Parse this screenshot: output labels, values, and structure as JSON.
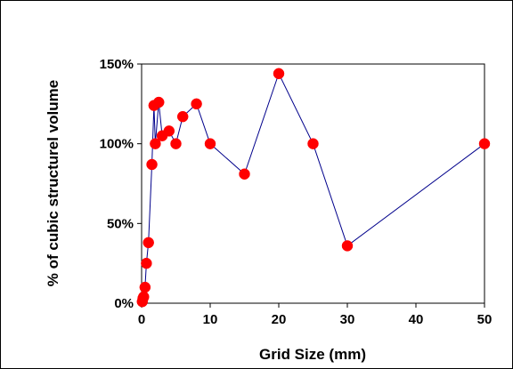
{
  "chart_data": {
    "type": "scatter",
    "title": "",
    "xlabel": "Grid Size (mm)",
    "ylabel": "% of cubic structurel volume",
    "xlim": [
      0,
      50
    ],
    "ylim": [
      0,
      150
    ],
    "x_ticks": [
      0,
      10,
      20,
      30,
      40,
      50
    ],
    "x_tick_labels": [
      "0",
      "10",
      "20",
      "30",
      "40",
      "50"
    ],
    "y_ticks": [
      0,
      50,
      100,
      150
    ],
    "y_tick_labels": [
      "0%",
      "50%",
      "100%",
      "150%"
    ],
    "grid": false,
    "legend": "none",
    "line_color": "#00008B",
    "marker_color": "#FF0000",
    "series": [
      {
        "points": [
          [
            0.1,
            1
          ],
          [
            0.2,
            3
          ],
          [
            0.3,
            4
          ],
          [
            0.5,
            10
          ],
          [
            0.7,
            25
          ],
          [
            1.0,
            38
          ],
          [
            1.5,
            87
          ],
          [
            1.8,
            124
          ],
          [
            2.0,
            100
          ],
          [
            2.5,
            126
          ],
          [
            3.0,
            105
          ],
          [
            4.0,
            108
          ],
          [
            5.0,
            100
          ],
          [
            6.0,
            117
          ],
          [
            8.0,
            125
          ],
          [
            10.0,
            100
          ],
          [
            15.0,
            81
          ],
          [
            20.0,
            144
          ],
          [
            25.0,
            100
          ],
          [
            30.0,
            36
          ],
          [
            50.0,
            100
          ]
        ]
      }
    ]
  }
}
